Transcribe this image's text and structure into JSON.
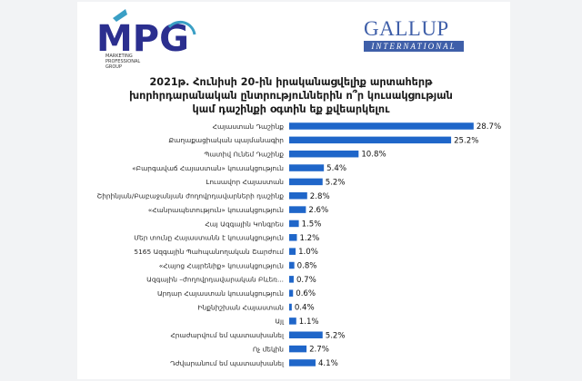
{
  "header": {
    "mpg_logo_text": "MPG",
    "mpg_tagline": [
      "MARKETING",
      "PROFESSIONAL",
      "GROUP"
    ],
    "gallup_name": "GALLUP",
    "gallup_sub": "INTERNATIONAL"
  },
  "colors": {
    "bar": "#1f66c9",
    "gallup": "#3f5fa9",
    "mpg_blue": "#2b2f8f",
    "mpg_teal": "#3a9fc5"
  },
  "chart_data": {
    "type": "bar",
    "orientation": "horizontal",
    "title_lines": [
      "2021թ. Հունիսի 20-ին իրականացվելիք արտահերթ",
      "խորհրդարանական ընտրություններին ո՞ր կուսակցության",
      "կամ դաշինքի օգտին եք քվեարկելու"
    ],
    "categories": [
      "Հայաստան Դաշինք",
      "Քաղաքացիական պայմանագիր",
      "Պատիվ Ունեմ Դաշինք",
      "«Բարգավաճ Հայաստան» կուսակցություն",
      "Լուսավոր Հայաստան",
      "Շիրինյան/Բաբաջանյան ժողովրդավարների դաշինք",
      "«Հանրապետություն» կուսակցություն",
      "Հայ Ազգային Կոնգրես",
      "Մեր տունը Հայաստանն է կուսակցություն",
      "5165 Ազգային Պահպանողական Շարժում",
      "«Հայոց Հայրենիք» կուսակցություն",
      "Ազգային –ժողովրդավարական Բևեռ...",
      "Արդար Հայաստան կուսակցություն",
      "Ինքնիշխան Հայաստան",
      "Այլ",
      "Հրաժարվում եմ պատասխանել",
      "Ոչ մեկին",
      "Դժվարանում եմ պատասխանել"
    ],
    "values": [
      28.7,
      25.2,
      10.8,
      5.4,
      5.2,
      2.8,
      2.6,
      1.5,
      1.2,
      1.0,
      0.8,
      0.7,
      0.6,
      0.4,
      1.1,
      5.2,
      2.7,
      4.1
    ],
    "value_labels": [
      "28.7%",
      "25.2%",
      "10.8%",
      "5.4%",
      "5.2%",
      "2.8%",
      "2.6%",
      "1.5%",
      "1.2%",
      "1.0%",
      "0.8%",
      "0.7%",
      "0.6%",
      "0.4%",
      "1.1%",
      "5.2%",
      "2.7%",
      "4.1%"
    ],
    "xlim": [
      0,
      30
    ],
    "grid": false,
    "legend": "none"
  }
}
